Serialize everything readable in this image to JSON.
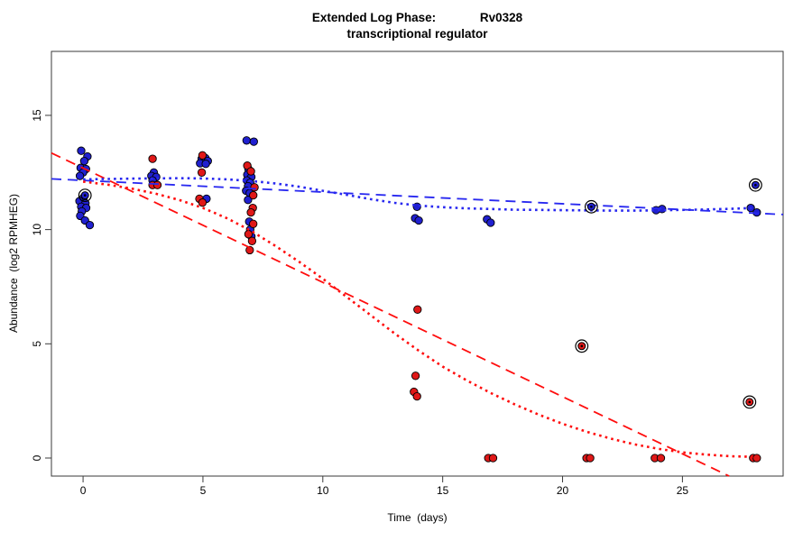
{
  "window": {
    "background": "#ffffff"
  },
  "colors": {
    "axis": "#3a3a3a",
    "tick_text": "#000000",
    "blue_point": "#2020d0",
    "red_point": "#e01818",
    "blue_line": "#2828f0",
    "red_line": "#ff0d0d",
    "marker_outline": "#000000"
  },
  "chart_data": {
    "type": "scatter",
    "title": "Extended Log Phase:             Rv0328",
    "subtitle": "transcriptional regulator",
    "xlabel": "Time  (days)",
    "ylabel": "Abundance  (log2 RPMHEG)",
    "xlim": [
      -1.32,
      29.2
    ],
    "ylim": [
      -0.79,
      17.8
    ],
    "xticks": [
      0,
      5,
      10,
      15,
      20,
      25
    ],
    "yticks": [
      0,
      5,
      10,
      15
    ],
    "grid": false,
    "legend_position": "none",
    "series": [
      {
        "name": "blue-samples",
        "color": "#2020d0",
        "marker": "dot",
        "points": [
          [
            -0.08,
            13.45
          ],
          [
            0.18,
            13.2
          ],
          [
            0.05,
            13.0
          ],
          [
            -0.1,
            12.7
          ],
          [
            0.12,
            12.65
          ],
          [
            0.0,
            12.5
          ],
          [
            -0.13,
            12.35
          ],
          [
            0.02,
            11.4
          ],
          [
            -0.15,
            11.25
          ],
          [
            0.1,
            11.15
          ],
          [
            -0.08,
            11.0
          ],
          [
            0.13,
            10.95
          ],
          [
            -0.05,
            10.8
          ],
          [
            -0.12,
            10.6
          ],
          [
            0.08,
            10.4
          ],
          [
            0.28,
            10.2
          ],
          [
            2.95,
            12.5
          ],
          [
            2.85,
            12.35
          ],
          [
            3.05,
            12.3
          ],
          [
            2.9,
            12.15
          ],
          [
            4.95,
            13.1
          ],
          [
            5.1,
            13.13
          ],
          [
            5.2,
            13.0
          ],
          [
            4.88,
            12.9
          ],
          [
            5.12,
            12.88
          ],
          [
            5.15,
            11.35
          ],
          [
            6.82,
            13.9
          ],
          [
            7.12,
            13.85
          ],
          [
            6.9,
            12.65
          ],
          [
            6.85,
            12.4
          ],
          [
            7.02,
            12.3
          ],
          [
            6.83,
            12.15
          ],
          [
            6.97,
            12.05
          ],
          [
            6.88,
            11.9
          ],
          [
            6.8,
            11.7
          ],
          [
            6.95,
            11.6
          ],
          [
            6.88,
            11.3
          ],
          [
            6.93,
            10.35
          ],
          [
            6.97,
            10.0
          ],
          [
            7.02,
            9.7
          ],
          [
            13.93,
            11.0
          ],
          [
            13.85,
            10.5
          ],
          [
            14.0,
            10.4
          ],
          [
            16.85,
            10.45
          ],
          [
            17.0,
            10.3
          ],
          [
            23.9,
            10.85
          ],
          [
            24.15,
            10.9
          ],
          [
            27.85,
            10.95
          ],
          [
            28.1,
            10.75
          ]
        ]
      },
      {
        "name": "red-samples",
        "color": "#e01818",
        "marker": "dot",
        "points": [
          [
            2.9,
            13.1
          ],
          [
            2.9,
            11.95
          ],
          [
            3.1,
            11.95
          ],
          [
            4.98,
            13.25
          ],
          [
            4.95,
            12.5
          ],
          [
            4.85,
            11.35
          ],
          [
            4.98,
            11.18
          ],
          [
            6.85,
            12.8
          ],
          [
            7.0,
            12.55
          ],
          [
            7.15,
            11.85
          ],
          [
            7.1,
            11.5
          ],
          [
            7.08,
            10.95
          ],
          [
            7.0,
            10.75
          ],
          [
            7.1,
            10.25
          ],
          [
            6.9,
            9.8
          ],
          [
            7.05,
            9.5
          ],
          [
            6.95,
            9.1
          ],
          [
            13.95,
            6.5
          ],
          [
            13.87,
            3.6
          ],
          [
            13.8,
            2.9
          ],
          [
            13.93,
            2.7
          ],
          [
            16.9,
            0.0
          ],
          [
            17.1,
            0.0
          ],
          [
            21.0,
            0.0
          ],
          [
            21.15,
            0.0
          ],
          [
            23.85,
            0.0
          ],
          [
            24.1,
            0.0
          ],
          [
            27.95,
            0.0
          ],
          [
            28.1,
            0.0
          ]
        ]
      },
      {
        "name": "blue-flagged-samples",
        "color": "#2020d0",
        "marker": "circled-dot",
        "points": [
          [
            0.08,
            11.5
          ],
          [
            21.2,
            11.0
          ],
          [
            28.05,
            11.95
          ]
        ]
      },
      {
        "name": "red-flagged-samples",
        "color": "#e01818",
        "marker": "circled-dot",
        "points": [
          [
            20.8,
            4.9
          ],
          [
            27.8,
            2.45
          ]
        ]
      }
    ],
    "lines": [
      {
        "name": "blue-linear-fit",
        "color": "#2828f0",
        "style": "dashed",
        "points": [
          [
            -1.32,
            12.22
          ],
          [
            29.2,
            10.66
          ]
        ]
      },
      {
        "name": "red-linear-fit",
        "color": "#ff0d0d",
        "style": "dashed",
        "points": [
          [
            -1.32,
            13.35
          ],
          [
            26.95,
            -0.79
          ]
        ]
      },
      {
        "name": "blue-smooth-fit",
        "color": "#2828f0",
        "style": "dotted",
        "points": [
          [
            0,
            12.2
          ],
          [
            2,
            12.23
          ],
          [
            4,
            12.25
          ],
          [
            5,
            12.24
          ],
          [
            6,
            12.2
          ],
          [
            7,
            12.13
          ],
          [
            8,
            12.02
          ],
          [
            9,
            11.88
          ],
          [
            10,
            11.7
          ],
          [
            11,
            11.52
          ],
          [
            12,
            11.33
          ],
          [
            13,
            11.17
          ],
          [
            14,
            11.05
          ],
          [
            15,
            10.98
          ],
          [
            16,
            10.93
          ],
          [
            17,
            10.9
          ],
          [
            18,
            10.87
          ],
          [
            19,
            10.86
          ],
          [
            20,
            10.85
          ],
          [
            21,
            10.84
          ],
          [
            22,
            10.83
          ],
          [
            23,
            10.83
          ],
          [
            24,
            10.84
          ],
          [
            25,
            10.86
          ],
          [
            26,
            10.88
          ],
          [
            27,
            10.91
          ],
          [
            28,
            10.95
          ]
        ]
      },
      {
        "name": "red-smooth-fit",
        "color": "#ff0d0d",
        "style": "dotted",
        "points": [
          [
            0,
            12.1
          ],
          [
            1,
            11.97
          ],
          [
            2,
            11.8
          ],
          [
            3,
            11.58
          ],
          [
            4,
            11.3
          ],
          [
            5,
            10.95
          ],
          [
            6,
            10.5
          ],
          [
            7,
            9.95
          ],
          [
            8,
            9.3
          ],
          [
            9,
            8.6
          ],
          [
            10,
            7.85
          ],
          [
            11,
            7.05
          ],
          [
            12,
            6.25
          ],
          [
            13,
            5.45
          ],
          [
            14,
            4.7
          ],
          [
            15,
            4.0
          ],
          [
            16,
            3.4
          ],
          [
            17,
            2.85
          ],
          [
            18,
            2.35
          ],
          [
            19,
            1.9
          ],
          [
            20,
            1.5
          ],
          [
            21,
            1.15
          ],
          [
            22,
            0.85
          ],
          [
            23,
            0.6
          ],
          [
            24,
            0.4
          ],
          [
            25,
            0.25
          ],
          [
            26,
            0.15
          ],
          [
            27,
            0.08
          ],
          [
            28,
            0.05
          ]
        ]
      }
    ]
  }
}
